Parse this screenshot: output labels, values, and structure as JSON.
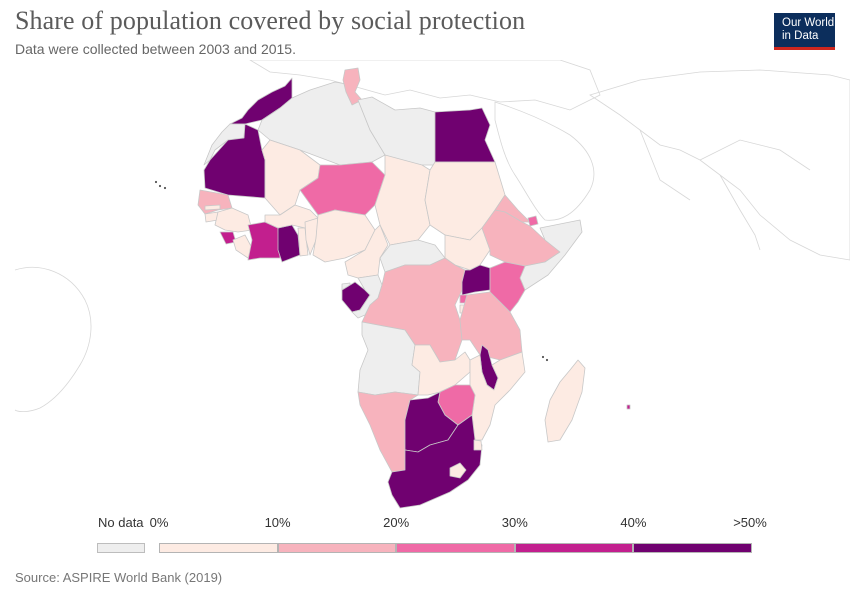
{
  "header": {
    "title": "Share of population covered by social protection",
    "subtitle": "Data were collected between 2003 and 2015."
  },
  "logo": {
    "line1": "Our World",
    "line2": "in Data"
  },
  "legend": {
    "no_data_label": "No data",
    "bins": [
      {
        "label": "0%",
        "color": "#fdebe3"
      },
      {
        "label": "10%",
        "color": "#f7b3bd"
      },
      {
        "label": "20%",
        "color": "#ef6aa6"
      },
      {
        "label": "30%",
        "color": "#c21f8e"
      },
      {
        "label": "40%",
        "color": "#700170"
      }
    ],
    "end_label": ">50%",
    "no_data_color": "#eeeeee"
  },
  "countries": [
    {
      "name": "Morocco",
      "bin": 4
    },
    {
      "name": "Western Sahara",
      "bin": -1
    },
    {
      "name": "Algeria",
      "bin": -1
    },
    {
      "name": "Tunisia",
      "bin": 1
    },
    {
      "name": "Libya",
      "bin": -1
    },
    {
      "name": "Egypt",
      "bin": 4
    },
    {
      "name": "Mauritania",
      "bin": 4
    },
    {
      "name": "Mali",
      "bin": 0
    },
    {
      "name": "Niger",
      "bin": 2
    },
    {
      "name": "Chad",
      "bin": 0
    },
    {
      "name": "Sudan",
      "bin": 0
    },
    {
      "name": "Senegal",
      "bin": 1
    },
    {
      "name": "Gambia",
      "bin": 0
    },
    {
      "name": "Guinea-Bissau",
      "bin": 0
    },
    {
      "name": "Guinea",
      "bin": 0
    },
    {
      "name": "Sierra Leone",
      "bin": 3
    },
    {
      "name": "Liberia",
      "bin": 0
    },
    {
      "name": "Cote d'Ivoire",
      "bin": 3
    },
    {
      "name": "Ghana",
      "bin": 4
    },
    {
      "name": "Burkina Faso",
      "bin": 0
    },
    {
      "name": "Togo",
      "bin": 0
    },
    {
      "name": "Benin",
      "bin": 0
    },
    {
      "name": "Nigeria",
      "bin": 0
    },
    {
      "name": "Cameroon",
      "bin": 0
    },
    {
      "name": "Central African Republic",
      "bin": -1
    },
    {
      "name": "South Sudan",
      "bin": 0
    },
    {
      "name": "Eritrea",
      "bin": 1
    },
    {
      "name": "Djibouti",
      "bin": 2
    },
    {
      "name": "Ethiopia",
      "bin": 1
    },
    {
      "name": "Somalia",
      "bin": -1
    },
    {
      "name": "Equatorial Guinea",
      "bin": -1
    },
    {
      "name": "Gabon",
      "bin": 4
    },
    {
      "name": "Republic of the Congo",
      "bin": -1
    },
    {
      "name": "Democratic Republic of the Congo",
      "bin": 1
    },
    {
      "name": "Uganda",
      "bin": 4
    },
    {
      "name": "Kenya",
      "bin": 2
    },
    {
      "name": "Rwanda",
      "bin": 2
    },
    {
      "name": "Burundi",
      "bin": 0
    },
    {
      "name": "Tanzania",
      "bin": 1
    },
    {
      "name": "Angola",
      "bin": -1
    },
    {
      "name": "Zambia",
      "bin": 0
    },
    {
      "name": "Malawi",
      "bin": 4
    },
    {
      "name": "Mozambique",
      "bin": 0
    },
    {
      "name": "Zimbabwe",
      "bin": 2
    },
    {
      "name": "Namibia",
      "bin": 1
    },
    {
      "name": "Botswana",
      "bin": 4
    },
    {
      "name": "South Africa",
      "bin": 4
    },
    {
      "name": "Lesotho",
      "bin": 0
    },
    {
      "name": "Eswatini",
      "bin": 0
    },
    {
      "name": "Madagascar",
      "bin": 0
    },
    {
      "name": "Mauritius",
      "bin": 3
    }
  ],
  "source": "Source: ASPIRE World Bank (2019)"
}
